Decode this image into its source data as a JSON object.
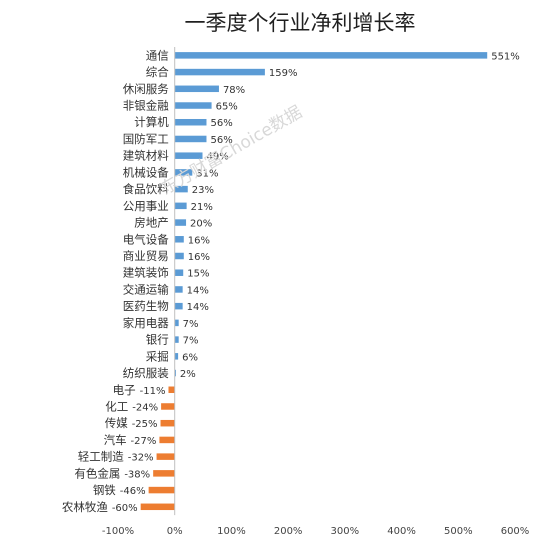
{
  "chart_data": {
    "type": "bar",
    "orientation": "horizontal",
    "title": "一季度个行业净利增长率",
    "categories": [
      "通信",
      "综合",
      "休闲服务",
      "非银金融",
      "计算机",
      "国防军工",
      "建筑材料",
      "机械设备",
      "食品饮料",
      "公用事业",
      "房地产",
      "电气设备",
      "商业贸易",
      "建筑装饰",
      "交通运输",
      "医药生物",
      "家用电器",
      "银行",
      "采掘",
      "纺织服装",
      "电子",
      "化工",
      "传媒",
      "汽车",
      "轻工制造",
      "有色金属",
      "钢铁",
      "农林牧渔"
    ],
    "values": [
      551,
      159,
      78,
      65,
      56,
      56,
      49,
      31,
      23,
      21,
      20,
      16,
      16,
      15,
      14,
      14,
      7,
      7,
      6,
      2,
      -11,
      -24,
      -25,
      -27,
      -32,
      -38,
      -46,
      -60
    ],
    "value_labels": [
      "551%",
      "159%",
      "78%",
      "65%",
      "56%",
      "56%",
      "49%",
      "31%",
      "23%",
      "21%",
      "20%",
      "16%",
      "16%",
      "15%",
      "14%",
      "14%",
      "7%",
      "7%",
      "6%",
      "2%",
      "-11%",
      "-24%",
      "-25%",
      "-27%",
      "-32%",
      "-38%",
      "-46%",
      "-60%"
    ],
    "xlim": [
      -100,
      600
    ],
    "x_ticks": [
      "-100%",
      "0%",
      "100%",
      "200%",
      "300%",
      "400%",
      "500%",
      "600%"
    ],
    "colors": {
      "positive": "#5b9bd5",
      "negative": "#ed7d31",
      "axis": "#bfbfbf"
    },
    "grid": false,
    "legend": "none",
    "watermark": "东方财富Choice数据"
  }
}
